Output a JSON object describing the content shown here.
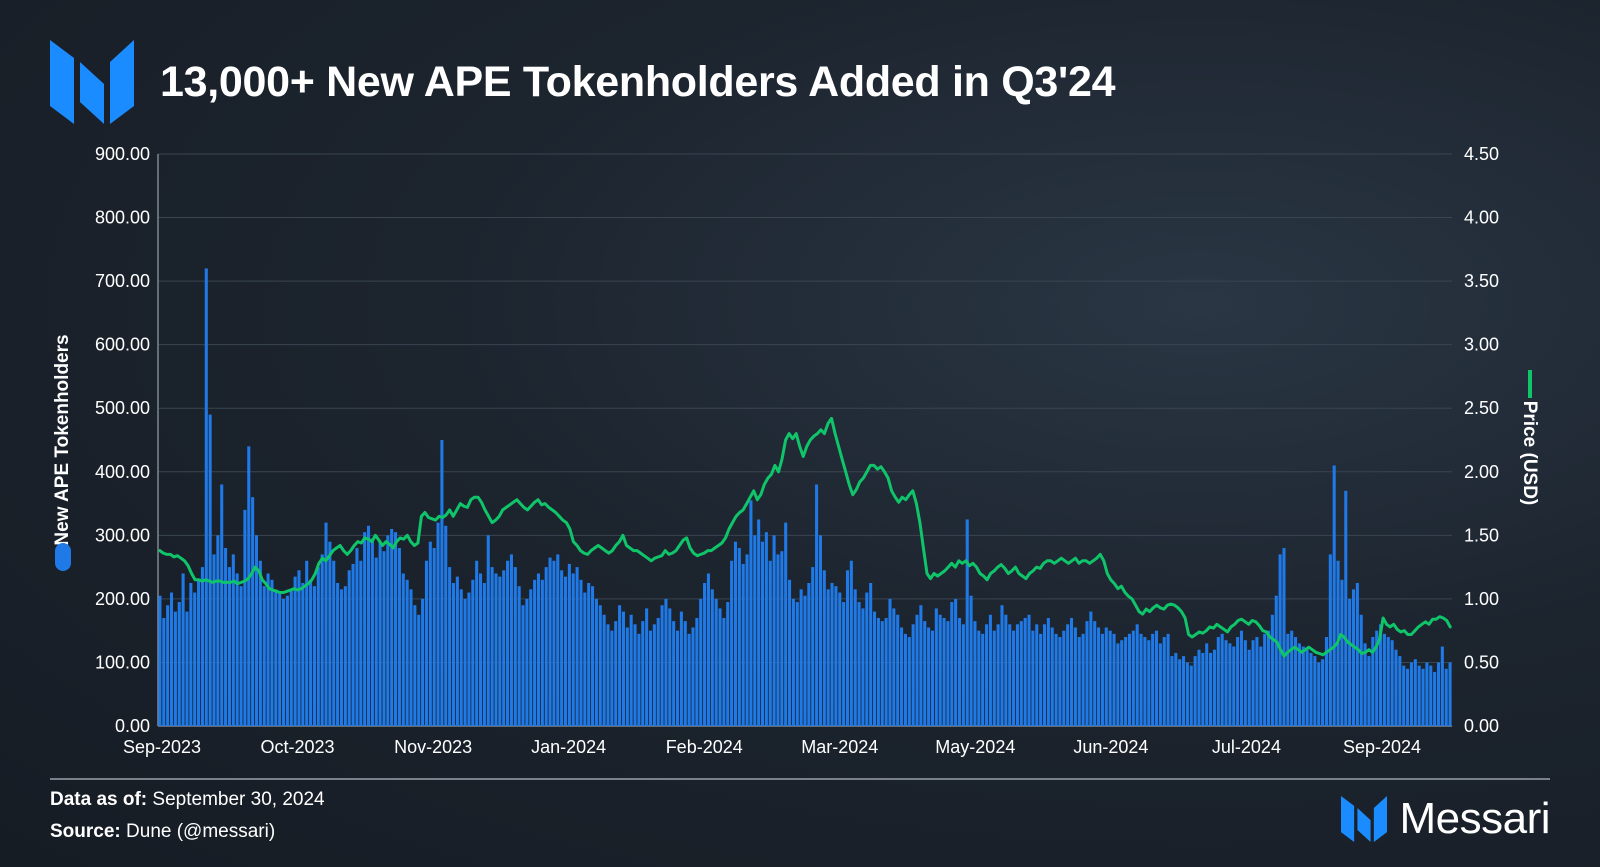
{
  "header": {
    "title": "13,000+ New APE Tokenholders Added in Q3'24",
    "logo_icon": "messari-logo-icon"
  },
  "footer": {
    "data_as_of_label": "Data as of:",
    "data_as_of_value": "September 30, 2024",
    "source_label": "Source:",
    "source_value": "Dune (@messari)",
    "brand_name": "Messari"
  },
  "colors": {
    "bars": "#1f7ae8",
    "line": "#10c46a",
    "brand_blue": "#1a8cff"
  },
  "chart_data": {
    "type": "bar",
    "title": "13,000+ New APE Tokenholders Added in Q3'24",
    "y_left_label": "New APE Tokenholders",
    "y_right_label": "Price (USD)",
    "y_left_range": [
      0,
      900
    ],
    "y_right_range": [
      0,
      4.5
    ],
    "y_left_ticks": [
      "0.00",
      "100.00",
      "200.00",
      "300.00",
      "400.00",
      "500.00",
      "600.00",
      "700.00",
      "800.00",
      "900.00"
    ],
    "y_right_ticks": [
      "0.00",
      "0.50",
      "1.00",
      "1.50",
      "2.00",
      "2.50",
      "3.00",
      "3.50",
      "4.00",
      "4.50"
    ],
    "x_tick_labels": [
      "Sep-2023",
      "Oct-2023",
      "Nov-2023",
      "Jan-2024",
      "Feb-2024",
      "Mar-2024",
      "May-2024",
      "Jun-2024",
      "Jul-2024",
      "Sep-2024"
    ],
    "grid": true,
    "legend": "left-and-right axis titles",
    "series": [
      {
        "name": "New APE Tokenholders",
        "type": "bar",
        "axis": "left",
        "values": [
          205,
          170,
          190,
          210,
          180,
          195,
          240,
          180,
          225,
          210,
          230,
          250,
          720,
          490,
          270,
          300,
          380,
          280,
          250,
          270,
          240,
          220,
          340,
          440,
          360,
          300,
          260,
          220,
          240,
          230,
          215,
          210,
          200,
          205,
          215,
          235,
          245,
          225,
          260,
          230,
          220,
          250,
          270,
          320,
          290,
          260,
          225,
          215,
          220,
          245,
          255,
          280,
          260,
          305,
          315,
          295,
          265,
          290,
          275,
          300,
          310,
          305,
          280,
          240,
          230,
          215,
          190,
          175,
          200,
          260,
          290,
          280,
          320,
          450,
          315,
          250,
          225,
          235,
          215,
          200,
          210,
          230,
          260,
          240,
          225,
          300,
          250,
          240,
          235,
          245,
          260,
          270,
          250,
          220,
          190,
          200,
          215,
          230,
          240,
          230,
          250,
          265,
          260,
          270,
          245,
          235,
          255,
          240,
          250,
          230,
          210,
          225,
          220,
          200,
          190,
          175,
          160,
          150,
          165,
          190,
          180,
          155,
          175,
          160,
          145,
          165,
          185,
          150,
          160,
          170,
          190,
          200,
          185,
          165,
          150,
          180,
          165,
          145,
          155,
          170,
          200,
          225,
          240,
          215,
          200,
          185,
          170,
          195,
          260,
          290,
          280,
          255,
          270,
          355,
          300,
          325,
          290,
          305,
          260,
          300,
          270,
          275,
          320,
          230,
          200,
          195,
          215,
          205,
          225,
          250,
          380,
          300,
          245,
          215,
          225,
          220,
          210,
          195,
          245,
          260,
          215,
          195,
          185,
          210,
          225,
          180,
          170,
          165,
          170,
          200,
          185,
          175,
          155,
          145,
          140,
          160,
          175,
          190,
          165,
          155,
          150,
          185,
          175,
          170,
          165,
          195,
          200,
          170,
          160,
          325,
          205,
          165,
          150,
          145,
          160,
          175,
          150,
          160,
          190,
          175,
          160,
          150,
          160,
          165,
          170,
          175,
          150,
          160,
          145,
          160,
          170,
          155,
          145,
          140,
          150,
          160,
          170,
          155,
          140,
          145,
          165,
          180,
          165,
          155,
          145,
          155,
          150,
          145,
          130,
          135,
          140,
          145,
          150,
          160,
          145,
          140,
          135,
          145,
          150,
          130,
          140,
          145,
          110,
          115,
          105,
          110,
          100,
          95,
          110,
          120,
          115,
          130,
          115,
          120,
          140,
          145,
          135,
          130,
          125,
          140,
          150,
          135,
          120,
          135,
          140,
          125,
          145,
          150,
          175,
          205,
          270,
          280,
          145,
          150,
          140,
          130,
          125,
          120,
          115,
          110,
          100,
          105,
          140,
          270,
          410,
          260,
          230,
          370,
          200,
          215,
          225,
          175,
          130,
          110,
          140,
          150,
          160,
          145,
          140,
          135,
          120,
          110,
          95,
          90,
          100,
          105,
          95,
          90,
          100,
          95,
          85,
          100,
          125,
          90,
          100
        ]
      },
      {
        "name": "Price (USD)",
        "type": "line",
        "axis": "right",
        "values": [
          1.38,
          1.36,
          1.35,
          1.35,
          1.33,
          1.34,
          1.32,
          1.3,
          1.26,
          1.2,
          1.15,
          1.15,
          1.14,
          1.15,
          1.14,
          1.13,
          1.14,
          1.14,
          1.13,
          1.13,
          1.13,
          1.14,
          1.12,
          1.13,
          1.14,
          1.16,
          1.2,
          1.25,
          1.22,
          1.15,
          1.12,
          1.08,
          1.07,
          1.06,
          1.05,
          1.05,
          1.06,
          1.07,
          1.08,
          1.07,
          1.08,
          1.1,
          1.12,
          1.15,
          1.2,
          1.28,
          1.32,
          1.3,
          1.34,
          1.38,
          1.4,
          1.42,
          1.38,
          1.35,
          1.38,
          1.42,
          1.45,
          1.44,
          1.48,
          1.47,
          1.45,
          1.5,
          1.46,
          1.42,
          1.45,
          1.43,
          1.4,
          1.45,
          1.48,
          1.47,
          1.5,
          1.45,
          1.42,
          1.44,
          1.65,
          1.68,
          1.64,
          1.63,
          1.62,
          1.65,
          1.64,
          1.66,
          1.7,
          1.65,
          1.7,
          1.75,
          1.73,
          1.72,
          1.78,
          1.8,
          1.8,
          1.76,
          1.7,
          1.65,
          1.6,
          1.62,
          1.65,
          1.7,
          1.72,
          1.74,
          1.76,
          1.78,
          1.75,
          1.72,
          1.7,
          1.73,
          1.76,
          1.78,
          1.74,
          1.75,
          1.72,
          1.7,
          1.68,
          1.65,
          1.62,
          1.6,
          1.55,
          1.45,
          1.42,
          1.38,
          1.36,
          1.35,
          1.38,
          1.4,
          1.42,
          1.4,
          1.38,
          1.36,
          1.38,
          1.42,
          1.45,
          1.5,
          1.42,
          1.4,
          1.38,
          1.38,
          1.36,
          1.34,
          1.32,
          1.3,
          1.32,
          1.33,
          1.34,
          1.38,
          1.35,
          1.36,
          1.38,
          1.42,
          1.46,
          1.48,
          1.4,
          1.36,
          1.34,
          1.35,
          1.36,
          1.38,
          1.38,
          1.4,
          1.42,
          1.44,
          1.48,
          1.55,
          1.6,
          1.65,
          1.68,
          1.7,
          1.75,
          1.8,
          1.85,
          1.78,
          1.82,
          1.9,
          1.95,
          1.98,
          2.05,
          2.0,
          2.1,
          2.25,
          2.3,
          2.26,
          2.3,
          2.2,
          2.12,
          2.2,
          2.25,
          2.28,
          2.3,
          2.33,
          2.3,
          2.38,
          2.42,
          2.3,
          2.2,
          2.1,
          2.0,
          1.9,
          1.82,
          1.86,
          1.92,
          1.95,
          2.0,
          2.05,
          2.05,
          2.02,
          2.04,
          2.0,
          1.95,
          1.85,
          1.8,
          1.76,
          1.8,
          1.78,
          1.82,
          1.85,
          1.75,
          1.6,
          1.4,
          1.2,
          1.16,
          1.2,
          1.18,
          1.2,
          1.22,
          1.25,
          1.28,
          1.25,
          1.3,
          1.28,
          1.3,
          1.26,
          1.28,
          1.25,
          1.2,
          1.18,
          1.15,
          1.2,
          1.22,
          1.25,
          1.27,
          1.24,
          1.2,
          1.22,
          1.25,
          1.2,
          1.18,
          1.16,
          1.2,
          1.22,
          1.25,
          1.24,
          1.28,
          1.3,
          1.3,
          1.28,
          1.3,
          1.32,
          1.3,
          1.28,
          1.3,
          1.32,
          1.28,
          1.3,
          1.3,
          1.28,
          1.3,
          1.32,
          1.35,
          1.3,
          1.2,
          1.15,
          1.12,
          1.08,
          1.1,
          1.05,
          1.02,
          1.0,
          0.95,
          0.9,
          0.88,
          0.92,
          0.9,
          0.93,
          0.95,
          0.93,
          0.92,
          0.95,
          0.96,
          0.95,
          0.93,
          0.9,
          0.85,
          0.72,
          0.7,
          0.72,
          0.74,
          0.73,
          0.75,
          0.78,
          0.77,
          0.8,
          0.78,
          0.76,
          0.74,
          0.78,
          0.8,
          0.83,
          0.84,
          0.82,
          0.8,
          0.83,
          0.82,
          0.79,
          0.75,
          0.74,
          0.7,
          0.68,
          0.66,
          0.6,
          0.55,
          0.58,
          0.6,
          0.62,
          0.6,
          0.58,
          0.6,
          0.62,
          0.6,
          0.58,
          0.57,
          0.56,
          0.58,
          0.6,
          0.62,
          0.65,
          0.72,
          0.7,
          0.66,
          0.64,
          0.62,
          0.6,
          0.57,
          0.58,
          0.6,
          0.58,
          0.62,
          0.68,
          0.85,
          0.8,
          0.78,
          0.8,
          0.76,
          0.74,
          0.75,
          0.72,
          0.72,
          0.75,
          0.78,
          0.8,
          0.82,
          0.8,
          0.84,
          0.84,
          0.86,
          0.85,
          0.83,
          0.78
        ]
      }
    ]
  }
}
